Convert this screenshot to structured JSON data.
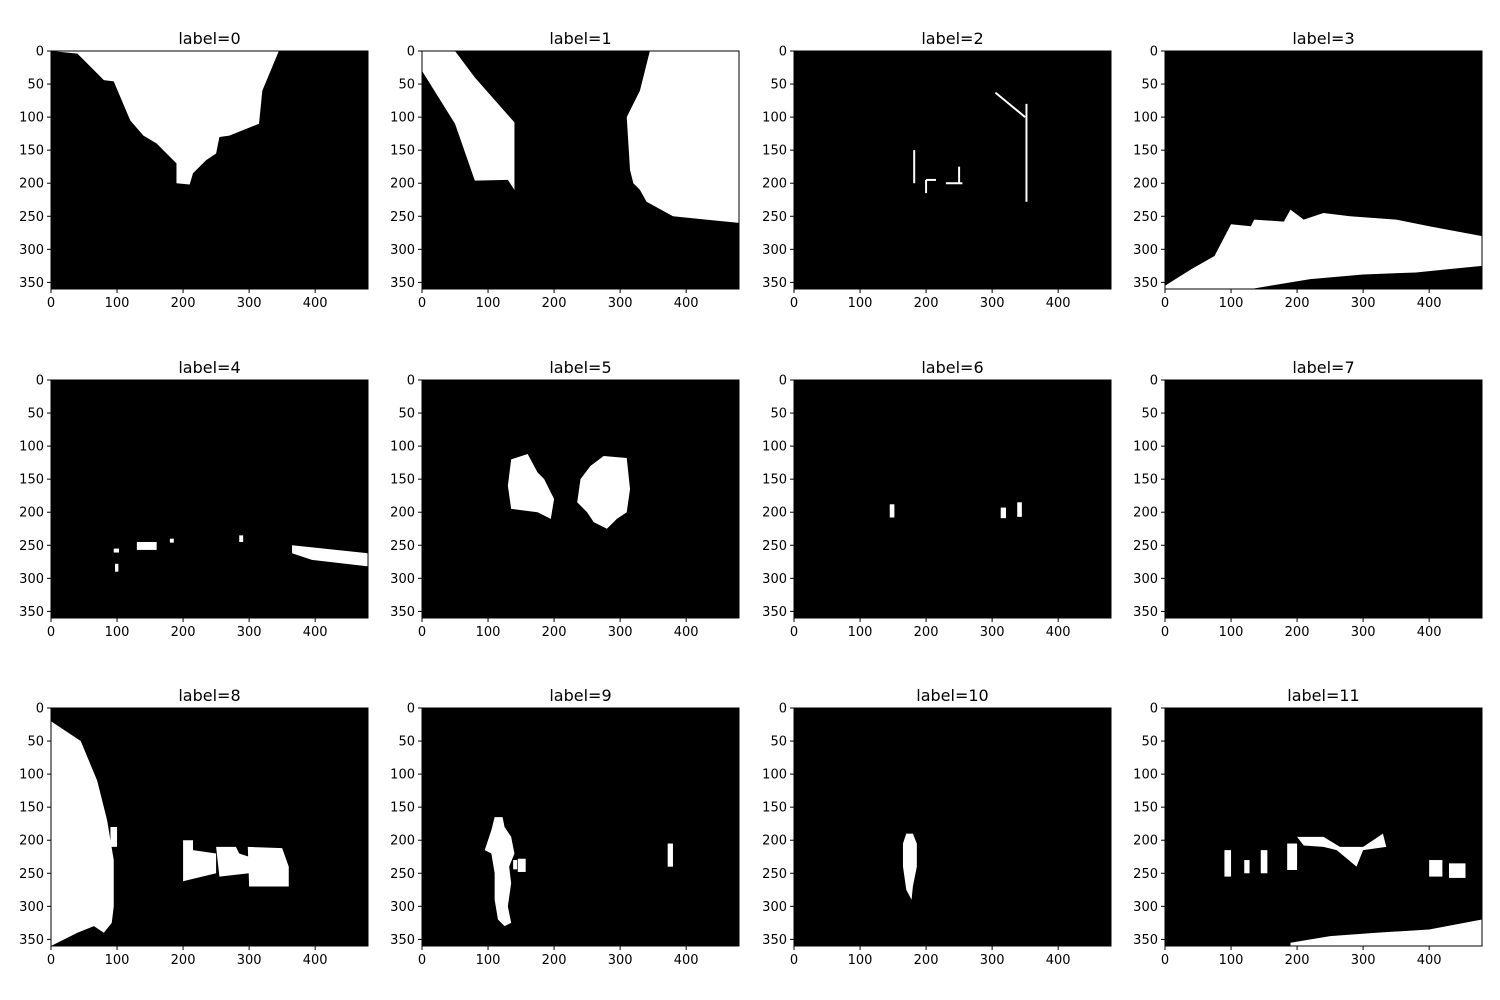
{
  "figure": {
    "colors": {
      "background": "#ffffff",
      "mask_background": "#000000",
      "mask_foreground": "#ffffff",
      "axis": "#000000"
    },
    "x_ticks": [
      "0",
      "100",
      "200",
      "300",
      "400"
    ],
    "y_ticks": [
      "0",
      "50",
      "100",
      "150",
      "200",
      "250",
      "300",
      "350"
    ],
    "panels": [
      {
        "title": "label=0"
      },
      {
        "title": "label=1"
      },
      {
        "title": "label=2"
      },
      {
        "title": "label=3"
      },
      {
        "title": "label=4"
      },
      {
        "title": "label=5"
      },
      {
        "title": "label=6"
      },
      {
        "title": "label=7"
      },
      {
        "title": "label=8"
      },
      {
        "title": "label=9"
      },
      {
        "title": "label=10"
      },
      {
        "title": "label=11"
      }
    ]
  }
}
